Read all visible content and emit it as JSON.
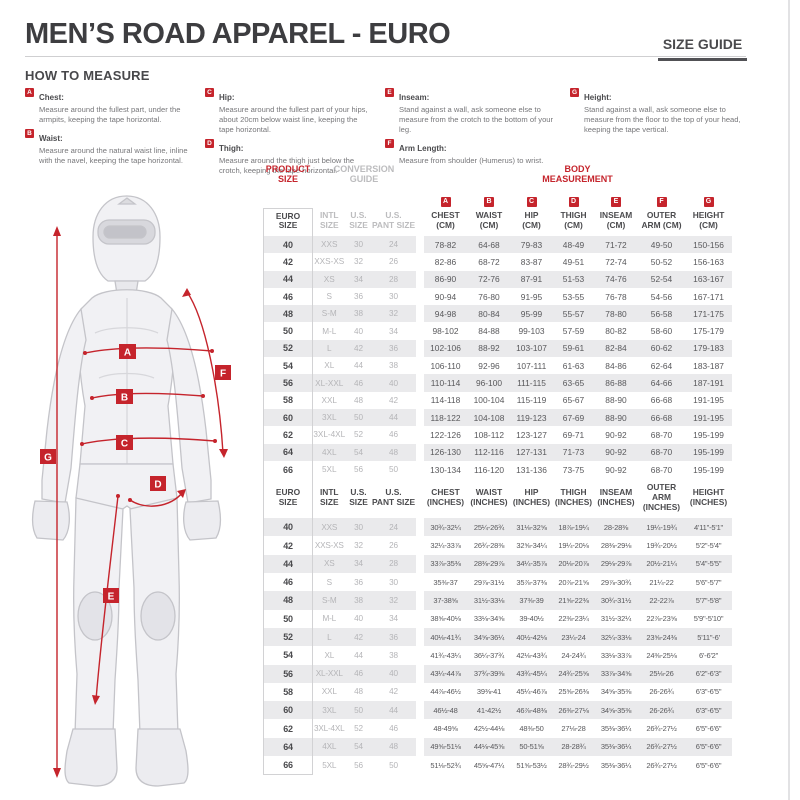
{
  "header": {
    "title": "MEN’S ROAD APPAREL - EURO",
    "size_guide_label": "SIZE GUIDE"
  },
  "how_to_measure": {
    "title": "HOW TO MEASURE",
    "items": [
      {
        "letter": "A",
        "name": "Chest:",
        "text": "Measure around the fullest part, under the armpits, keeping the tape horizontal."
      },
      {
        "letter": "B",
        "name": "Waist:",
        "text": "Measure around the natural waist line, inline with the navel, keeping the tape horizontal."
      },
      {
        "letter": "C",
        "name": "Hip:",
        "text": "Measure around the fullest part of your hips, about 20cm below waist line, keeping the tape horizontal."
      },
      {
        "letter": "D",
        "name": "Thigh:",
        "text": "Measure around the thigh just below the crotch, keeping the tape horizontal."
      },
      {
        "letter": "E",
        "name": "Inseam:",
        "text": "Stand against a wall, ask someone else to measure from the crotch to the bottom of your leg."
      },
      {
        "letter": "F",
        "name": "Arm Length:",
        "text": "Measure from shoulder (Humerus) to wrist."
      },
      {
        "letter": "G",
        "name": "Height:",
        "text": "Stand against a wall, ask someone else to measure from the floor to the top of your head, keeping the tape vertical."
      }
    ]
  },
  "figure": {
    "labels": [
      "A",
      "B",
      "C",
      "D",
      "E",
      "F",
      "G"
    ]
  },
  "table": {
    "group_headers": [
      "PRODUCT\nSIZE",
      "CONVERSION\nGUIDE",
      "BODY\nMEASUREMENT"
    ],
    "letters": [
      "A",
      "B",
      "C",
      "D",
      "E",
      "F",
      "G"
    ],
    "left_columns": [
      "EURO\nSIZE",
      "INTL\nSIZE",
      "U.S.\nSIZE",
      "U.S.\nPANT SIZE"
    ],
    "cm_columns": [
      "CHEST\n(CM)",
      "WAIST\n(CM)",
      "HIP\n(CM)",
      "THIGH\n(CM)",
      "INSEAM\n(CM)",
      "OUTER\nARM (CM)",
      "HEIGHT\n(CM)"
    ],
    "inch_columns": [
      "CHEST\n(INCHES)",
      "WAIST\n(INCHES)",
      "HIP\n(INCHES)",
      "THIGH\n(INCHES)",
      "INSEAM\n(INCHES)",
      "OUTER ARM\n(INCHES)",
      "HEIGHT\n(INCHES)"
    ],
    "cm_rows": [
      [
        "40",
        "XXS",
        "30",
        "24",
        "78-82",
        "64-68",
        "79-83",
        "48-49",
        "71-72",
        "49-50",
        "150-156"
      ],
      [
        "42",
        "XXS-XS",
        "32",
        "26",
        "82-86",
        "68-72",
        "83-87",
        "49-51",
        "72-74",
        "50-52",
        "156-163"
      ],
      [
        "44",
        "XS",
        "34",
        "28",
        "86-90",
        "72-76",
        "87-91",
        "51-53",
        "74-76",
        "52-54",
        "163-167"
      ],
      [
        "46",
        "S",
        "36",
        "30",
        "90-94",
        "76-80",
        "91-95",
        "53-55",
        "76-78",
        "54-56",
        "167-171"
      ],
      [
        "48",
        "S-M",
        "38",
        "32",
        "94-98",
        "80-84",
        "95-99",
        "55-57",
        "78-80",
        "56-58",
        "171-175"
      ],
      [
        "50",
        "M-L",
        "40",
        "34",
        "98-102",
        "84-88",
        "99-103",
        "57-59",
        "80-82",
        "58-60",
        "175-179"
      ],
      [
        "52",
        "L",
        "42",
        "36",
        "102-106",
        "88-92",
        "103-107",
        "59-61",
        "82-84",
        "60-62",
        "179-183"
      ],
      [
        "54",
        "XL",
        "44",
        "38",
        "106-110",
        "92-96",
        "107-111",
        "61-63",
        "84-86",
        "62-64",
        "183-187"
      ],
      [
        "56",
        "XL-XXL",
        "46",
        "40",
        "110-114",
        "96-100",
        "111-115",
        "63-65",
        "86-88",
        "64-66",
        "187-191"
      ],
      [
        "58",
        "XXL",
        "48",
        "42",
        "114-118",
        "100-104",
        "115-119",
        "65-67",
        "88-90",
        "66-68",
        "191-195"
      ],
      [
        "60",
        "3XL",
        "50",
        "44",
        "118-122",
        "104-108",
        "119-123",
        "67-69",
        "88-90",
        "66-68",
        "191-195"
      ],
      [
        "62",
        "3XL-4XL",
        "52",
        "46",
        "122-126",
        "108-112",
        "123-127",
        "69-71",
        "90-92",
        "68-70",
        "195-199"
      ],
      [
        "64",
        "4XL",
        "54",
        "48",
        "126-130",
        "112-116",
        "127-131",
        "71-73",
        "90-92",
        "68-70",
        "195-199"
      ],
      [
        "66",
        "5XL",
        "56",
        "50",
        "130-134",
        "116-120",
        "131-136",
        "73-75",
        "90-92",
        "68-70",
        "195-199"
      ]
    ],
    "inch_rows": [
      [
        "40",
        "XXS",
        "30",
        "24",
        "30¾-32¼",
        "25¼-26¾",
        "31⅛-32⅝",
        "18⅞-19¼",
        "28-28⅜",
        "19¼-19¾",
        "4'11\"-5'1\""
      ],
      [
        "42",
        "XXS-XS",
        "32",
        "26",
        "32¼-33⅞",
        "26¾-28⅜",
        "32⅝-34¼",
        "19¼-20⅛",
        "28⅜-29⅛",
        "19¾-20½",
        "5'2\"-5'4\""
      ],
      [
        "44",
        "XS",
        "34",
        "28",
        "33⅞-35⅜",
        "28⅜-29⅞",
        "34¼-35⅞",
        "20⅛-20⅞",
        "29⅛-29⅞",
        "20½-21¼",
        "5'4\"-5'5\""
      ],
      [
        "46",
        "S",
        "36",
        "30",
        "35⅜-37",
        "29⅞-31½",
        "35⅞-37⅜",
        "20⅞-21⅝",
        "29⅞-30¾",
        "21¼-22",
        "5'6\"-5'7\""
      ],
      [
        "48",
        "S-M",
        "38",
        "32",
        "37-38⅝",
        "31½-33⅛",
        "37⅜-39",
        "21⅝-22⅜",
        "30¾-31½",
        "22-22⅞",
        "5'7\"-5'8\""
      ],
      [
        "50",
        "M-L",
        "40",
        "34",
        "38⅝-40⅛",
        "33⅛-34⅝",
        "39-40½",
        "22⅜-23¼",
        "31½-32¼",
        "22⅞-23⅝",
        "5'9\"-5'10\""
      ],
      [
        "52",
        "L",
        "42",
        "36",
        "40⅛-41¾",
        "34⅝-36¼",
        "40½-42⅛",
        "23¼-24",
        "32¼-33⅛",
        "23⅝-24⅜",
        "5'11\"-6'"
      ],
      [
        "54",
        "XL",
        "44",
        "38",
        "41¾-43¼",
        "36¼-37¾",
        "42⅛-43¾",
        "24-24¾",
        "33⅛-33⅞",
        "24⅜-25⅛",
        "6'-6'2\""
      ],
      [
        "56",
        "XL-XXL",
        "46",
        "40",
        "43¼-44⅞",
        "37¾-39⅜",
        "43¾-45¼",
        "24¾-25⅝",
        "33⅞-34⅝",
        "25⅛-26",
        "6'2\"-6'3\""
      ],
      [
        "58",
        "XXL",
        "48",
        "42",
        "44⅞-46½",
        "39⅜-41",
        "45¼-46⅞",
        "25⅝-26⅜",
        "34⅝-35⅜",
        "26-26¾",
        "6'3\"-6'5\""
      ],
      [
        "60",
        "3XL",
        "50",
        "44",
        "46½-48",
        "41-42½",
        "46⅞-48⅜",
        "26⅜-27⅛",
        "34⅝-35⅜",
        "26-26¾",
        "6'3\"-6'5\""
      ],
      [
        "62",
        "3XL-4XL",
        "52",
        "46",
        "48-49⅝",
        "42½-44⅛",
        "48⅜-50",
        "27⅛-28",
        "35⅜-36¼",
        "26¾-27½",
        "6'5\"-6'6\""
      ],
      [
        "64",
        "4XL",
        "54",
        "48",
        "49⅝-51⅛",
        "44⅛-45⅝",
        "50-51⅝",
        "28-28¾",
        "35⅜-36¼",
        "26¾-27½",
        "6'5\"-6'6\""
      ],
      [
        "66",
        "5XL",
        "56",
        "50",
        "51⅛-52¾",
        "45⅝-47¼",
        "51⅝-53½",
        "28¾-29½",
        "35⅜-36¼",
        "26¾-27½",
        "6'5\"-6'6\""
      ]
    ]
  },
  "colors": {
    "accent_red": "#c5242c",
    "stripe_gray": "#eaeaec",
    "text_dark": "#3d3d40",
    "text_gray": "#b5b5b8"
  }
}
